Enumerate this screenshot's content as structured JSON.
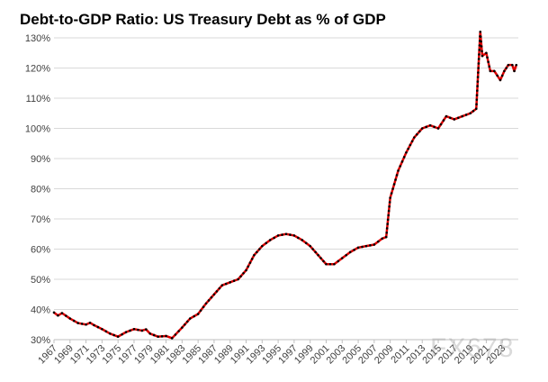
{
  "chart_data": {
    "type": "line",
    "title": "Debt-to-GDP Ratio: US Treasury Debt as % of GDP",
    "xlabel": "",
    "ylabel": "",
    "ylim": [
      30,
      130
    ],
    "xlim": [
      1967,
      2025
    ],
    "y_ticks": [
      "30%",
      "40%",
      "50%",
      "60%",
      "70%",
      "80%",
      "90%",
      "100%",
      "110%",
      "120%",
      "130%"
    ],
    "x_ticks": [
      "1967",
      "1969",
      "1971",
      "1973",
      "1975",
      "1977",
      "1979",
      "1981",
      "1983",
      "1985",
      "1987",
      "1989",
      "1991",
      "1993",
      "1995",
      "1997",
      "1999",
      "2001",
      "2003",
      "2005",
      "2007",
      "2009",
      "2011",
      "2013",
      "2015",
      "2017",
      "2019",
      "2021",
      "2023"
    ],
    "grid": "horizontal",
    "line_color": "#e00000",
    "marker_color": "#000000",
    "series": [
      {
        "x": [
          1967,
          1967.5,
          1968,
          1969,
          1970,
          1971,
          1971.5,
          1972,
          1973,
          1974,
          1975,
          1976,
          1977,
          1978,
          1978.5,
          1979,
          1980,
          1981,
          1981.75,
          1983,
          1984,
          1985,
          1986,
          1987,
          1988,
          1989,
          1990,
          1991,
          1992,
          1993,
          1994,
          1995,
          1996,
          1997,
          1998,
          1999,
          2000,
          2001,
          2002,
          2003,
          2004,
          2005,
          2006,
          2007,
          2008,
          2008.5,
          2009,
          2010,
          2011,
          2012,
          2013,
          2014,
          2015,
          2016,
          2017,
          2018,
          2019,
          2019.75,
          2020.25,
          2020.5,
          2021,
          2021.5,
          2022,
          2022.75,
          2023.25,
          2023.75,
          2024.25,
          2024.5,
          2024.75
        ],
        "y": [
          39,
          38,
          38.8,
          37,
          35.5,
          35,
          35.6,
          34.8,
          33.5,
          32,
          31,
          32.5,
          33.5,
          33,
          33.4,
          32,
          31,
          31.2,
          30.5,
          34,
          37,
          38.5,
          42,
          45,
          48,
          49,
          50,
          53,
          58,
          61,
          63,
          64.5,
          65,
          64.5,
          63,
          61,
          58,
          55,
          55,
          57,
          59,
          60.5,
          61,
          61.5,
          63.5,
          64,
          77,
          86,
          92,
          97,
          100,
          101,
          100,
          104,
          103,
          104,
          105,
          106.5,
          132,
          124,
          125,
          119,
          119,
          116,
          119,
          121,
          121,
          119,
          121
        ]
      }
    ]
  },
  "watermark": "FX678"
}
